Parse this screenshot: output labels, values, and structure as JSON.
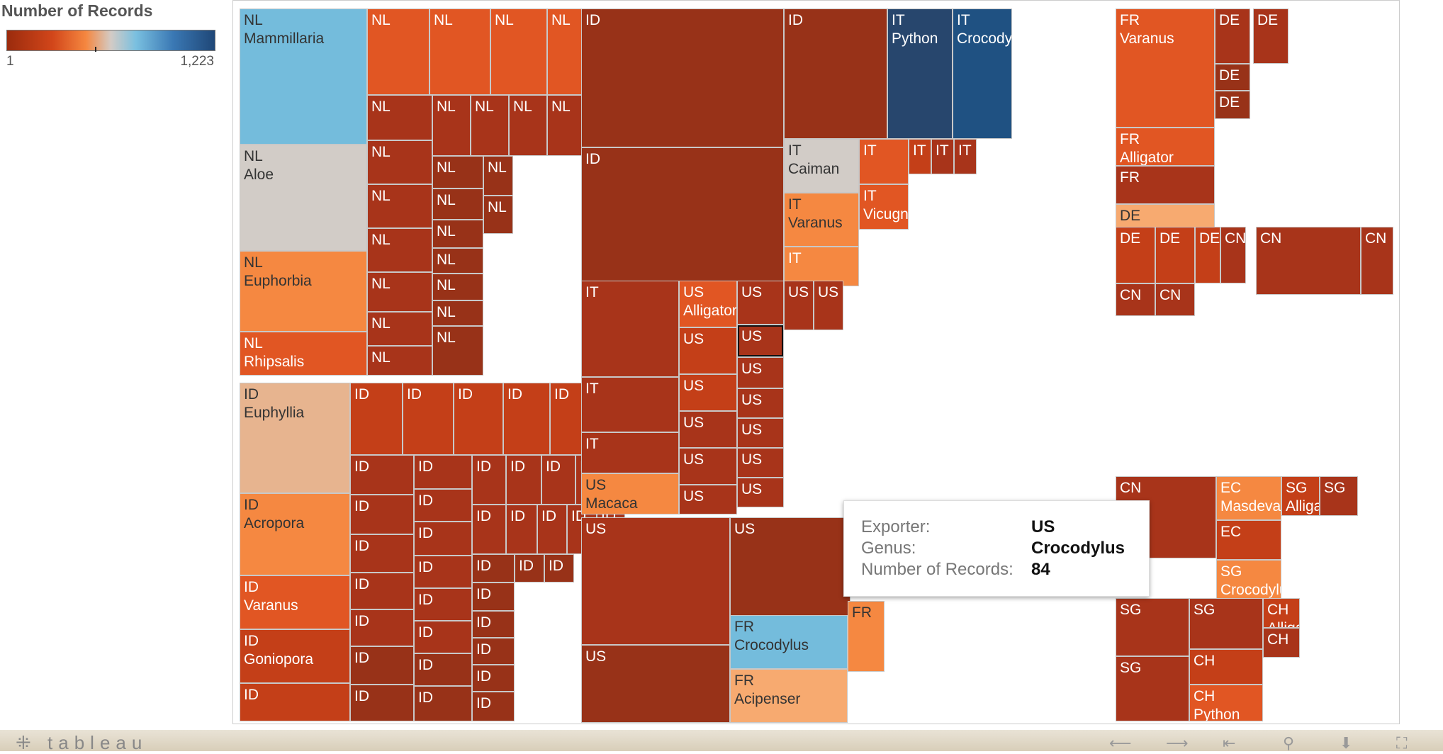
{
  "legend": {
    "title": "Number of Records",
    "min_label": "1",
    "max_label": "1,223"
  },
  "tooltip": {
    "rows": [
      {
        "key": "Exporter:",
        "value": "US"
      },
      {
        "key": "Genus:",
        "value": "Crocodylus"
      },
      {
        "key": "Number of Records:",
        "value": "84"
      }
    ]
  },
  "footer": {
    "logo": "tableau",
    "logo_icon": "tableau-plus-icon"
  },
  "chart_data": {
    "type": "treemap",
    "title": "",
    "color_legend": {
      "title": "Number of Records",
      "min": 1,
      "max": 1223
    },
    "groups": [
      {
        "exporter": "NL",
        "labeled_genera": [
          "Mammillaria",
          "Aloe",
          "Euphorbia",
          "Rhipsalis"
        ]
      },
      {
        "exporter": "ID",
        "labeled_genera": [
          "Euphyllia",
          "Acropora",
          "Varanus",
          "Goniopora"
        ]
      },
      {
        "exporter": "IT",
        "labeled_genera": [
          "Python",
          "Crocodylus",
          "Caiman",
          "Varanus",
          "Vicugna"
        ]
      },
      {
        "exporter": "US",
        "labeled_genera": [
          "Macaca",
          "Alligator",
          "Crocodylus"
        ]
      },
      {
        "exporter": "FR",
        "labeled_genera": [
          "Crocodylus",
          "Acipenser",
          "Varanus",
          "Alligator"
        ]
      },
      {
        "exporter": "DE",
        "labeled_genera": [
          "Acipenser"
        ]
      },
      {
        "exporter": "CN",
        "labeled_genera": []
      },
      {
        "exporter": "EC",
        "labeled_genera": [
          "Masdevallia"
        ]
      },
      {
        "exporter": "SG",
        "labeled_genera": [
          "Crocodylus",
          "Alligator"
        ]
      },
      {
        "exporter": "CH",
        "labeled_genera": [
          "Alligator",
          "Python"
        ]
      }
    ],
    "highlighted": {
      "exporter": "US",
      "genus": "Crocodylus",
      "records": 84
    }
  },
  "colors": {
    "darkest_blue": "#27466d",
    "dark_blue": "#1f5182",
    "light_blue": "#74bcdc",
    "neutral": "#d2ccc7",
    "light_orange": "#f7aa70",
    "peach": "#e7b48f",
    "orange": "#f58841",
    "red_orange": "#e15623",
    "red": "#c43f18",
    "dark_red": "#a8341a",
    "darkest_red": "#983218"
  },
  "cells": [
    {
      "l": "NL",
      "g": "Mammillaria",
      "c": "light_blue",
      "dark": true
    },
    {
      "l": "NL",
      "g": "Aloe",
      "c": "neutral",
      "dark": true
    },
    {
      "l": "NL",
      "g": "Euphorbia",
      "c": "orange",
      "dark": true
    },
    {
      "l": "NL",
      "g": "Rhipsalis",
      "c": "red_orange"
    },
    {
      "l": "NL",
      "c": "red_orange"
    },
    {
      "l": "NL",
      "c": "red_orange"
    },
    {
      "l": "NL",
      "c": "red_orange"
    },
    {
      "l": "NL",
      "c": "red_orange"
    },
    {
      "l": "NL",
      "c": "red"
    },
    {
      "l": "NL",
      "c": "red"
    },
    {
      "l": "NL",
      "c": "dark_red"
    },
    {
      "l": "NL",
      "c": "dark_red"
    },
    {
      "l": "NL",
      "c": "dark_red"
    },
    {
      "l": "NL",
      "c": "dark_red"
    },
    {
      "l": "NL",
      "c": "dark_red"
    },
    {
      "l": "NL",
      "c": "dark_red"
    },
    {
      "l": "NL",
      "c": "dark_red"
    },
    {
      "l": "NL",
      "c": "dark_red"
    },
    {
      "l": "NL",
      "c": "dark_red"
    },
    {
      "l": "NL",
      "c": "dark_red"
    },
    {
      "l": "NL",
      "c": "dark_red"
    },
    {
      "l": "NL",
      "c": "dark_red"
    },
    {
      "l": "NL",
      "c": "dark_red"
    },
    {
      "l": "NL",
      "c": "dark_red"
    },
    {
      "l": "NL",
      "c": "darkest_red"
    },
    {
      "l": "NL",
      "c": "darkest_red"
    },
    {
      "l": "NL",
      "c": "darkest_red"
    },
    {
      "l": "NL",
      "c": "darkest_red"
    },
    {
      "l": "NL",
      "c": "darkest_red"
    },
    {
      "l": "NL",
      "c": "darkest_red"
    },
    {
      "l": "NL",
      "c": "darkest_red"
    },
    {
      "l": "NL",
      "c": "darkest_red"
    },
    {
      "l": "NL",
      "c": "darkest_red"
    },
    {
      "l": "ID",
      "g": "Euphyllia",
      "c": "peach",
      "dark": true
    },
    {
      "l": "ID",
      "g": "Acropora",
      "c": "orange",
      "dark": true
    },
    {
      "l": "ID",
      "g": "Varanus",
      "c": "red_orange"
    },
    {
      "l": "ID",
      "g": "Goniopora",
      "c": "red"
    },
    {
      "l": "ID",
      "c": "red"
    },
    {
      "l": "ID",
      "c": "red"
    },
    {
      "l": "ID",
      "c": "red"
    },
    {
      "l": "ID",
      "c": "red"
    },
    {
      "l": "ID",
      "c": "red"
    },
    {
      "l": "ID",
      "c": "red"
    },
    {
      "l": "ID",
      "c": "red"
    },
    {
      "l": "ID",
      "c": "red"
    },
    {
      "l": "ID",
      "c": "dark_red"
    },
    {
      "l": "ID",
      "c": "dark_red"
    },
    {
      "l": "ID",
      "c": "dark_red"
    },
    {
      "l": "ID",
      "c": "dark_red"
    },
    {
      "l": "ID",
      "c": "dark_red"
    },
    {
      "l": "ID",
      "c": "dark_red"
    },
    {
      "l": "ID",
      "c": "dark_red"
    },
    {
      "l": "ID",
      "c": "dark_red"
    },
    {
      "l": "ID",
      "c": "dark_red"
    },
    {
      "l": "ID",
      "c": "dark_red"
    },
    {
      "l": "ID",
      "c": "dark_red"
    },
    {
      "l": "ID",
      "c": "dark_red"
    },
    {
      "l": "ID",
      "c": "dark_red"
    },
    {
      "l": "ID",
      "c": "dark_red"
    },
    {
      "l": "ID",
      "c": "dark_red"
    },
    {
      "l": "ID",
      "c": "dark_red"
    },
    {
      "l": "ID",
      "c": "dark_red"
    },
    {
      "l": "ID",
      "c": "dark_red"
    },
    {
      "l": "ID",
      "c": "dark_red"
    },
    {
      "l": "ID",
      "c": "dark_red"
    },
    {
      "l": "ID",
      "c": "dark_red"
    },
    {
      "l": "ID",
      "c": "darkest_red"
    },
    {
      "l": "ID",
      "c": "darkest_red"
    },
    {
      "l": "ID",
      "c": "darkest_red"
    },
    {
      "l": "ID",
      "c": "darkest_red"
    },
    {
      "l": "ID",
      "c": "darkest_red"
    },
    {
      "l": "ID",
      "c": "darkest_red"
    },
    {
      "l": "ID",
      "c": "darkest_red"
    },
    {
      "l": "ID",
      "c": "darkest_red"
    },
    {
      "l": "ID",
      "c": "darkest_red"
    },
    {
      "l": "ID",
      "c": "darkest_red"
    },
    {
      "l": "ID",
      "c": "darkest_red"
    },
    {
      "l": "ID",
      "c": "darkest_red"
    },
    {
      "l": "ID",
      "c": "darkest_red"
    },
    {
      "l": "ID",
      "c": "darkest_red"
    },
    {
      "l": "ID",
      "c": "darkest_red"
    },
    {
      "l": "IT",
      "g": "Python",
      "c": "darkest_blue"
    },
    {
      "l": "IT",
      "g": "Crocodylus",
      "c": "dark_blue"
    },
    {
      "l": "IT",
      "g": "Caiman",
      "c": "neutral",
      "dark": true
    },
    {
      "l": "IT",
      "g": "Varanus",
      "c": "orange",
      "dark": true
    },
    {
      "l": "IT",
      "c": "orange"
    },
    {
      "l": "IT",
      "c": "red_orange"
    },
    {
      "l": "IT",
      "g": "Vicugna",
      "c": "red_orange"
    },
    {
      "l": "IT",
      "c": "red"
    },
    {
      "l": "IT",
      "c": "dark_red"
    },
    {
      "l": "IT",
      "c": "dark_red"
    },
    {
      "l": "IT",
      "c": "dark_red"
    },
    {
      "l": "IT",
      "c": "dark_red"
    },
    {
      "l": "IT",
      "c": "dark_red"
    },
    {
      "l": "US",
      "g": "Macaca",
      "c": "orange",
      "dark": true
    },
    {
      "l": "US",
      "g": "Alligator",
      "c": "red_orange"
    },
    {
      "l": "US",
      "c": "red"
    },
    {
      "l": "US",
      "c": "red"
    },
    {
      "l": "US",
      "c": "dark_red"
    },
    {
      "l": "US",
      "c": "dark_red"
    },
    {
      "l": "US",
      "c": "dark_red"
    },
    {
      "l": "US",
      "c": "dark_red"
    },
    {
      "l": "US",
      "c": "dark_red",
      "selected": true
    },
    {
      "l": "US",
      "c": "dark_red"
    },
    {
      "l": "US",
      "c": "dark_red"
    },
    {
      "l": "US",
      "c": "dark_red"
    },
    {
      "l": "US",
      "c": "dark_red"
    },
    {
      "l": "US",
      "c": "dark_red"
    },
    {
      "l": "US",
      "c": "dark_red"
    },
    {
      "l": "US",
      "c": "dark_red"
    },
    {
      "l": "US",
      "c": "dark_red"
    },
    {
      "l": "US",
      "c": "darkest_red"
    },
    {
      "l": "US",
      "c": "darkest_red"
    },
    {
      "l": "FR",
      "g": "Crocodylus",
      "c": "light_blue",
      "dark": true
    },
    {
      "l": "FR",
      "g": "Acipenser",
      "c": "light_orange",
      "dark": true
    },
    {
      "l": "FR",
      "c": "orange",
      "dark": true
    },
    {
      "l": "FR",
      "g": "Varanus",
      "c": "red_orange"
    },
    {
      "l": "FR",
      "g": "Alligator",
      "c": "red_orange"
    },
    {
      "l": "FR",
      "c": "dark_red"
    },
    {
      "l": "DE",
      "g": "Acipenser",
      "c": "light_orange",
      "dark": true
    },
    {
      "l": "DE",
      "c": "dark_red"
    },
    {
      "l": "DE",
      "c": "dark_red"
    },
    {
      "l": "DE",
      "c": "darkest_red"
    },
    {
      "l": "DE",
      "c": "darkest_red"
    },
    {
      "l": "DE",
      "c": "red"
    },
    {
      "l": "DE",
      "c": "red"
    },
    {
      "l": "DE",
      "c": "red"
    },
    {
      "l": "CN",
      "c": "dark_red"
    },
    {
      "l": "CN",
      "c": "dark_red"
    },
    {
      "l": "CN",
      "c": "dark_red"
    },
    {
      "l": "CN",
      "c": "dark_red"
    },
    {
      "l": "CN",
      "c": "dark_red"
    },
    {
      "l": "CN",
      "c": "dark_red"
    },
    {
      "l": "EC",
      "g": "Masdevallia",
      "c": "orange"
    },
    {
      "l": "EC",
      "c": "red"
    },
    {
      "l": "SG",
      "g": "Crocodylus",
      "c": "orange"
    },
    {
      "l": "SG",
      "g": "Alligator",
      "c": "red"
    },
    {
      "l": "SG",
      "c": "dark_red"
    },
    {
      "l": "SG",
      "c": "dark_red"
    },
    {
      "l": "SG",
      "c": "dark_red"
    },
    {
      "l": "SG",
      "c": "dark_red"
    },
    {
      "l": "CH",
      "c": "red"
    },
    {
      "l": "CH",
      "g": "Python",
      "c": "red_orange"
    },
    {
      "l": "CH",
      "g": "Alligator",
      "c": "red"
    },
    {
      "l": "CH",
      "c": "dark_red"
    },
    {
      "l": "CH",
      "c": "dark_red"
    },
    {
      "l": "CH",
      "c": "darkest_red"
    },
    {
      "l": "CH",
      "c": "darkest_red"
    }
  ]
}
